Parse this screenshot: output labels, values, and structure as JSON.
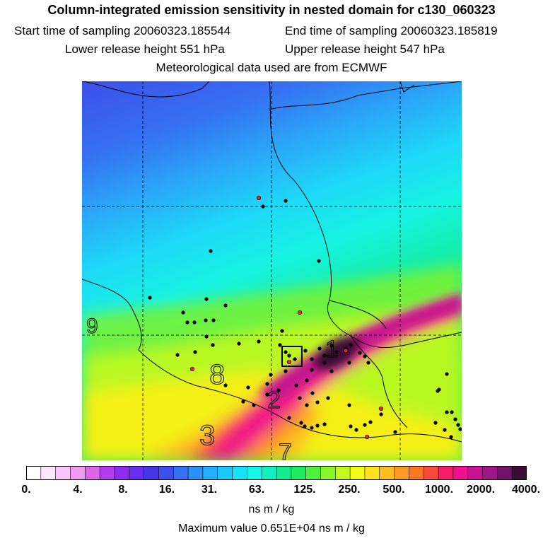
{
  "header": {
    "title": "Column-integrated emission sensitivity in nested domain for c130_060323",
    "start_time": "Start time of sampling 20060323.185544",
    "end_time": "End time of sampling 20060323.185819",
    "lower_release": "Lower release height  551 hPa",
    "upper_release": "Upper release height  547 hPa",
    "met_data": "Meteorological data used are from ECMWF"
  },
  "map": {
    "region_numbers": [
      "9",
      "8",
      "2",
      "3",
      "7",
      "1"
    ],
    "marker_color": "#000000",
    "red_marker_color": "#e03020"
  },
  "colorbar": {
    "labels": [
      "0.",
      "4.",
      "8.",
      "16.",
      "31.",
      "63.",
      "125.",
      "250.",
      "500.",
      "1000.",
      "2000.",
      "4000."
    ],
    "colors": [
      "#ffffff",
      "#ffe6ff",
      "#fbc6fb",
      "#f09af0",
      "#dd66e8",
      "#b43cf0",
      "#8e2cf2",
      "#6a2ef2",
      "#4736ea",
      "#3d50ee",
      "#3670f5",
      "#2a90f8",
      "#22aefb",
      "#1bc8fb",
      "#19e2f8",
      "#15f7e8",
      "#10f0c0",
      "#10ec8e",
      "#1aec60",
      "#4ff03e",
      "#8af62a",
      "#c2fa20",
      "#f2fa18",
      "#fee21c",
      "#fdbe22",
      "#fd9a22",
      "#fd7624",
      "#fb4a38",
      "#f81c68",
      "#ee1090",
      "#c81292",
      "#9c1688",
      "#701468",
      "#3c0c38"
    ],
    "units": "ns m / kg",
    "max_value": "Maximum value  0.651E+04 ns m / kg"
  }
}
